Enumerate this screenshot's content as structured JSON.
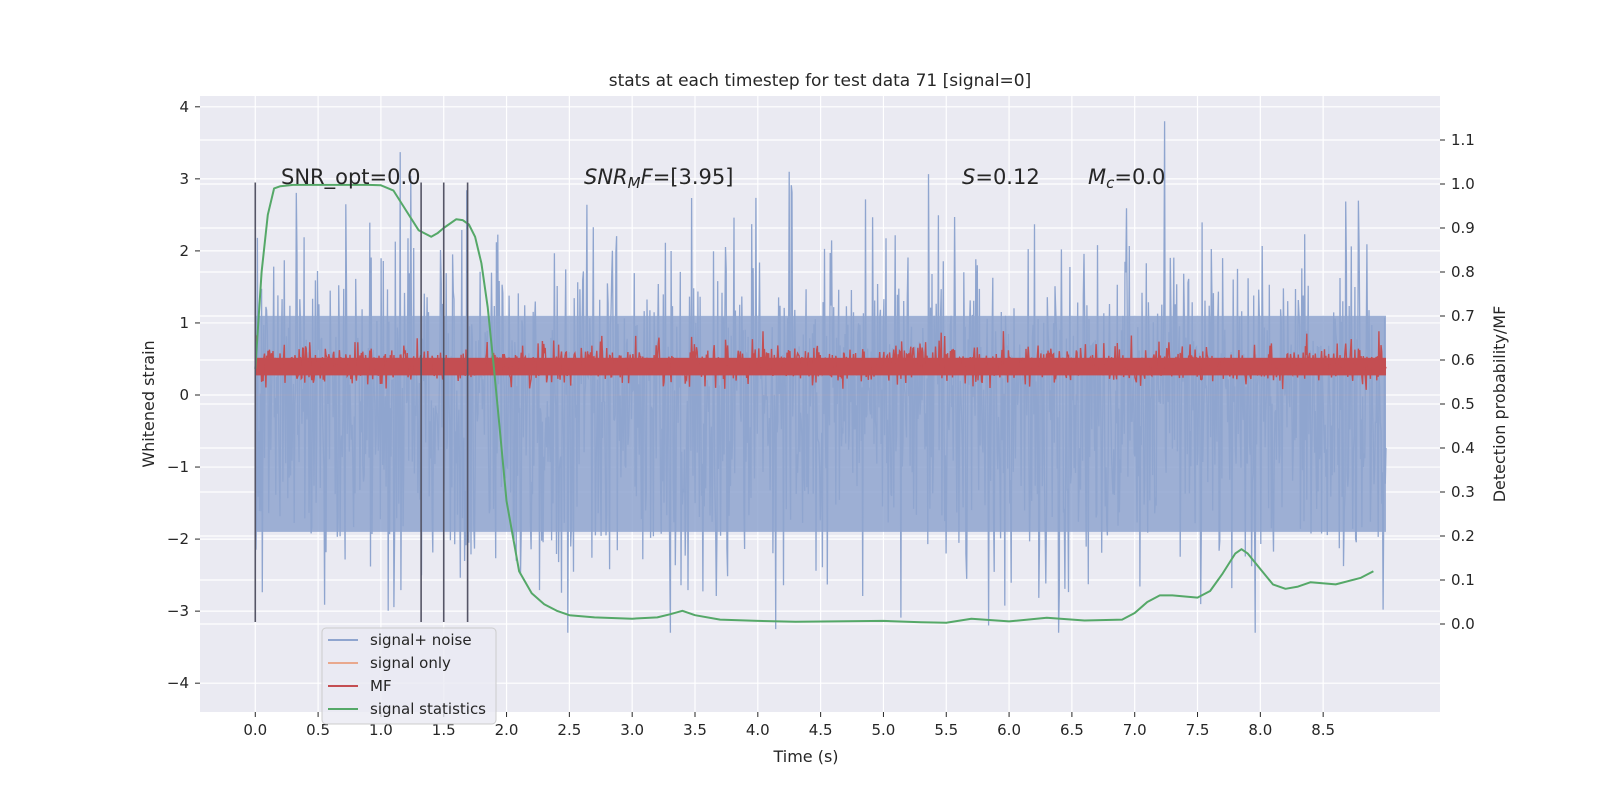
{
  "chart_data": {
    "type": "line",
    "title": "stats at each timestep for test data 71 [signal=0]",
    "xlabel": "Time (s)",
    "ylabel": "Whitened strain",
    "ylabel_right": "Detection probability/MF",
    "xlim": [
      -0.44,
      9.43
    ],
    "ylim": [
      -4.4,
      4.15
    ],
    "ylim_right": [
      -0.2,
      1.2
    ],
    "x_ticks": [
      0.0,
      0.5,
      1.0,
      1.5,
      2.0,
      2.5,
      3.0,
      3.5,
      4.0,
      4.5,
      5.0,
      5.5,
      6.0,
      6.5,
      7.0,
      7.5,
      8.0,
      8.5
    ],
    "x_tick_labels": [
      "0.0",
      "0.5",
      "1.0",
      "1.5",
      "2.0",
      "2.5",
      "3.0",
      "3.5",
      "4.0",
      "4.5",
      "5.0",
      "5.5",
      "6.0",
      "6.5",
      "7.0",
      "7.5",
      "8.0",
      "8.5"
    ],
    "y_ticks": [
      4,
      3,
      2,
      1,
      0,
      -1,
      -2,
      -3,
      -4
    ],
    "y_tick_labels": [
      "4",
      "3",
      "2",
      "1",
      "0",
      "−1",
      "−2",
      "−3",
      "−4"
    ],
    "y_right_ticks": [
      1.1,
      1.0,
      0.9,
      0.8,
      0.7,
      0.6,
      0.5,
      0.4,
      0.3,
      0.2,
      0.1,
      0.0
    ],
    "y_right_tick_labels": [
      "1.1",
      "1.0",
      "0.9",
      "0.8",
      "0.7",
      "0.6",
      "0.5",
      "0.4",
      "0.3",
      "0.2",
      "0.1",
      "0.0"
    ],
    "grid": true,
    "legend_position": "lower-left",
    "series": [
      {
        "name": "signal+ noise",
        "axis": "left",
        "color": "#8fa5cf",
        "time_range": [
          0.0,
          9.0
        ],
        "approx_range": [
          -3.3,
          3.8
        ]
      },
      {
        "name": "signal only",
        "axis": "left",
        "color": "#e9a88d",
        "time_range": [
          0.0,
          9.0
        ]
      },
      {
        "name": "MF",
        "axis": "right",
        "color": "#c44e52",
        "time_range": [
          0.0,
          9.0
        ],
        "approx_range": [
          0.53,
          0.67
        ]
      },
      {
        "name": "signal statistics",
        "axis": "right",
        "color": "#55a868",
        "x": [
          0.0,
          0.05,
          0.1,
          0.15,
          0.2,
          0.3,
          0.5,
          0.7,
          0.9,
          1.0,
          1.1,
          1.2,
          1.3,
          1.4,
          1.45,
          1.5,
          1.6,
          1.65,
          1.7,
          1.75,
          1.8,
          1.85,
          1.9,
          1.95,
          2.0,
          2.1,
          2.2,
          2.3,
          2.4,
          2.5,
          2.7,
          3.0,
          3.2,
          3.3,
          3.4,
          3.5,
          3.7,
          4.0,
          4.3,
          4.6,
          5.0,
          5.3,
          5.5,
          5.7,
          6.0,
          6.3,
          6.6,
          6.9,
          7.0,
          7.1,
          7.2,
          7.3,
          7.5,
          7.6,
          7.7,
          7.8,
          7.85,
          7.9,
          8.0,
          8.1,
          8.2,
          8.3,
          8.4,
          8.6,
          8.8,
          8.9
        ],
        "y": [
          0.58,
          0.8,
          0.93,
          0.99,
          0.995,
          0.998,
          0.998,
          0.998,
          0.998,
          0.997,
          0.985,
          0.94,
          0.895,
          0.88,
          0.888,
          0.9,
          0.92,
          0.918,
          0.908,
          0.88,
          0.82,
          0.72,
          0.58,
          0.43,
          0.28,
          0.12,
          0.07,
          0.045,
          0.03,
          0.02,
          0.015,
          0.012,
          0.015,
          0.022,
          0.03,
          0.02,
          0.01,
          0.007,
          0.005,
          0.006,
          0.007,
          0.004,
          0.003,
          0.012,
          0.006,
          0.014,
          0.008,
          0.01,
          0.025,
          0.05,
          0.065,
          0.065,
          0.06,
          0.075,
          0.115,
          0.16,
          0.17,
          0.16,
          0.125,
          0.09,
          0.08,
          0.085,
          0.095,
          0.09,
          0.105,
          0.12
        ]
      }
    ],
    "vertical_lines": [
      0.0,
      1.32,
      1.5,
      1.69
    ],
    "annotations": [
      {
        "text": "SNR_opt=0.0",
        "x": 0.2
      },
      {
        "text": "$SNR_MF$=[3.95]",
        "x": 2.6
      },
      {
        "text": "$S$=0.12",
        "x": 5.6
      },
      {
        "text": "$M_c$=0.0",
        "x": 6.6
      }
    ]
  }
}
